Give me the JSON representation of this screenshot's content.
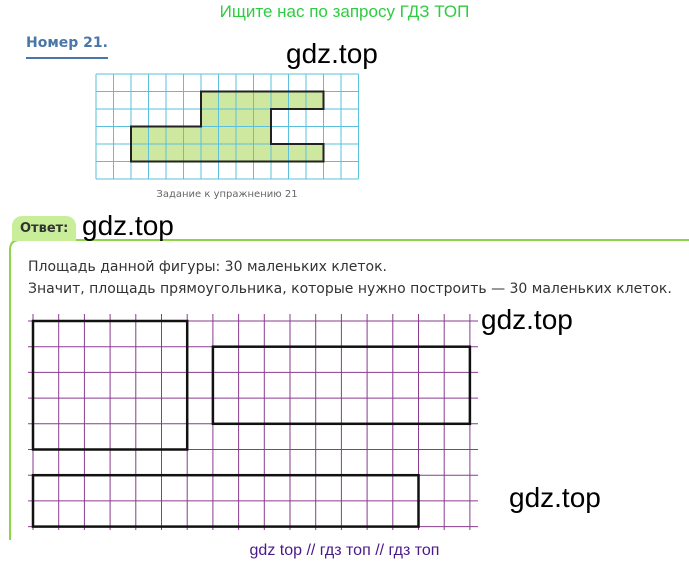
{
  "banner": "Ищите нас по запросу ГДЗ ТОП",
  "task": {
    "number": "Номер 21.",
    "caption": "Задание к упражнению 21"
  },
  "watermarks": [
    "gdz.top",
    "gdz.top",
    "gdz.top",
    "gdz.top"
  ],
  "answer": {
    "label": "Ответ:",
    "lines": [
      "Площадь данной фигуры: 30 маленьких клеток.",
      "Значит, площадь прямоугольника, которые нужно построить — 30 маленьких клеток."
    ]
  },
  "footer": "gdz top  //  гдз топ  //  гдз топ"
}
